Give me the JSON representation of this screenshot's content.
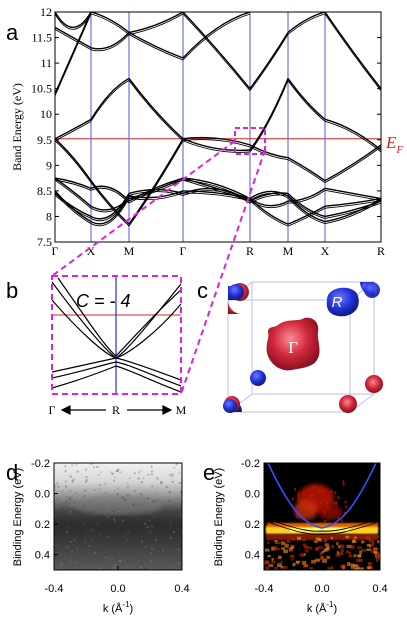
{
  "figure": {
    "panel_labels": [
      "a",
      "b",
      "c",
      "d",
      "e"
    ],
    "colors": {
      "band": "#000000",
      "kpath_line": "#4a5bd9",
      "fermi_line": "#e02020",
      "zoom_box": "#e020e0",
      "gamma_pocket": "#d0283c",
      "r_pocket": "#2030d8",
      "cube_edge": "#b8bde8"
    }
  },
  "panel_a": {
    "ylabel": "Band Energy (eV)",
    "fermi_label": "E",
    "fermi_sub": "F",
    "y_ticks": [
      "12",
      "11.5",
      "11",
      "10.5",
      "10",
      "9.5",
      "9",
      "8.5",
      "8",
      "7.5"
    ],
    "x_ticks": [
      "Γ",
      "X",
      "M",
      "Γ",
      "R",
      "M",
      "X",
      "R"
    ]
  },
  "panel_b": {
    "chern_label": "C = - 4",
    "k_start": "Γ",
    "k_mid": "R",
    "k_end": "M"
  },
  "panel_c": {
    "gamma_label": "Γ",
    "r_label": "R"
  },
  "panel_d": {
    "ylabel": "Binding Energy (eV)",
    "xlabel": "k (Å",
    "xlabel_sup": "-1",
    "xlabel_close": ")",
    "y_ticks": [
      "-0.2",
      "0.0",
      "0.2",
      "0.4"
    ],
    "x_ticks": [
      "-0.4",
      "0.0",
      "0.4"
    ]
  },
  "panel_e": {
    "ylabel": "Binding Energy (eV)",
    "xlabel": "k (Å",
    "xlabel_sup": "-1",
    "xlabel_close": ")",
    "y_ticks": [
      "-0.2",
      "0.0",
      "0.2",
      "0.4"
    ],
    "x_ticks": [
      "-0.4",
      "0.0",
      "0.4"
    ]
  },
  "chart_data": [
    {
      "type": "line",
      "panel": "a",
      "ylabel": "Band Energy (eV)",
      "ylim": [
        7.5,
        12
      ],
      "x_categories": [
        "Γ",
        "X",
        "M",
        "Γ",
        "R",
        "M",
        "X",
        "R"
      ],
      "fermi_level": 9.52,
      "annotation": "E_F"
    },
    {
      "type": "line",
      "panel": "b",
      "x_categories": [
        "Γ",
        "R",
        "M"
      ],
      "annotation": "C = - 4"
    },
    {
      "type": "heatmap",
      "panel": "d",
      "ylabel": "Binding Energy (eV)",
      "xlabel": "k (Å^-1)",
      "xlim": [
        -0.4,
        0.4
      ],
      "ylim": [
        -0.2,
        0.5
      ]
    },
    {
      "type": "heatmap",
      "panel": "e",
      "ylabel": "Binding Energy (eV)",
      "xlabel": "k (Å^-1)",
      "xlim": [
        -0.4,
        0.4
      ],
      "ylim": [
        -0.2,
        0.5
      ]
    }
  ]
}
